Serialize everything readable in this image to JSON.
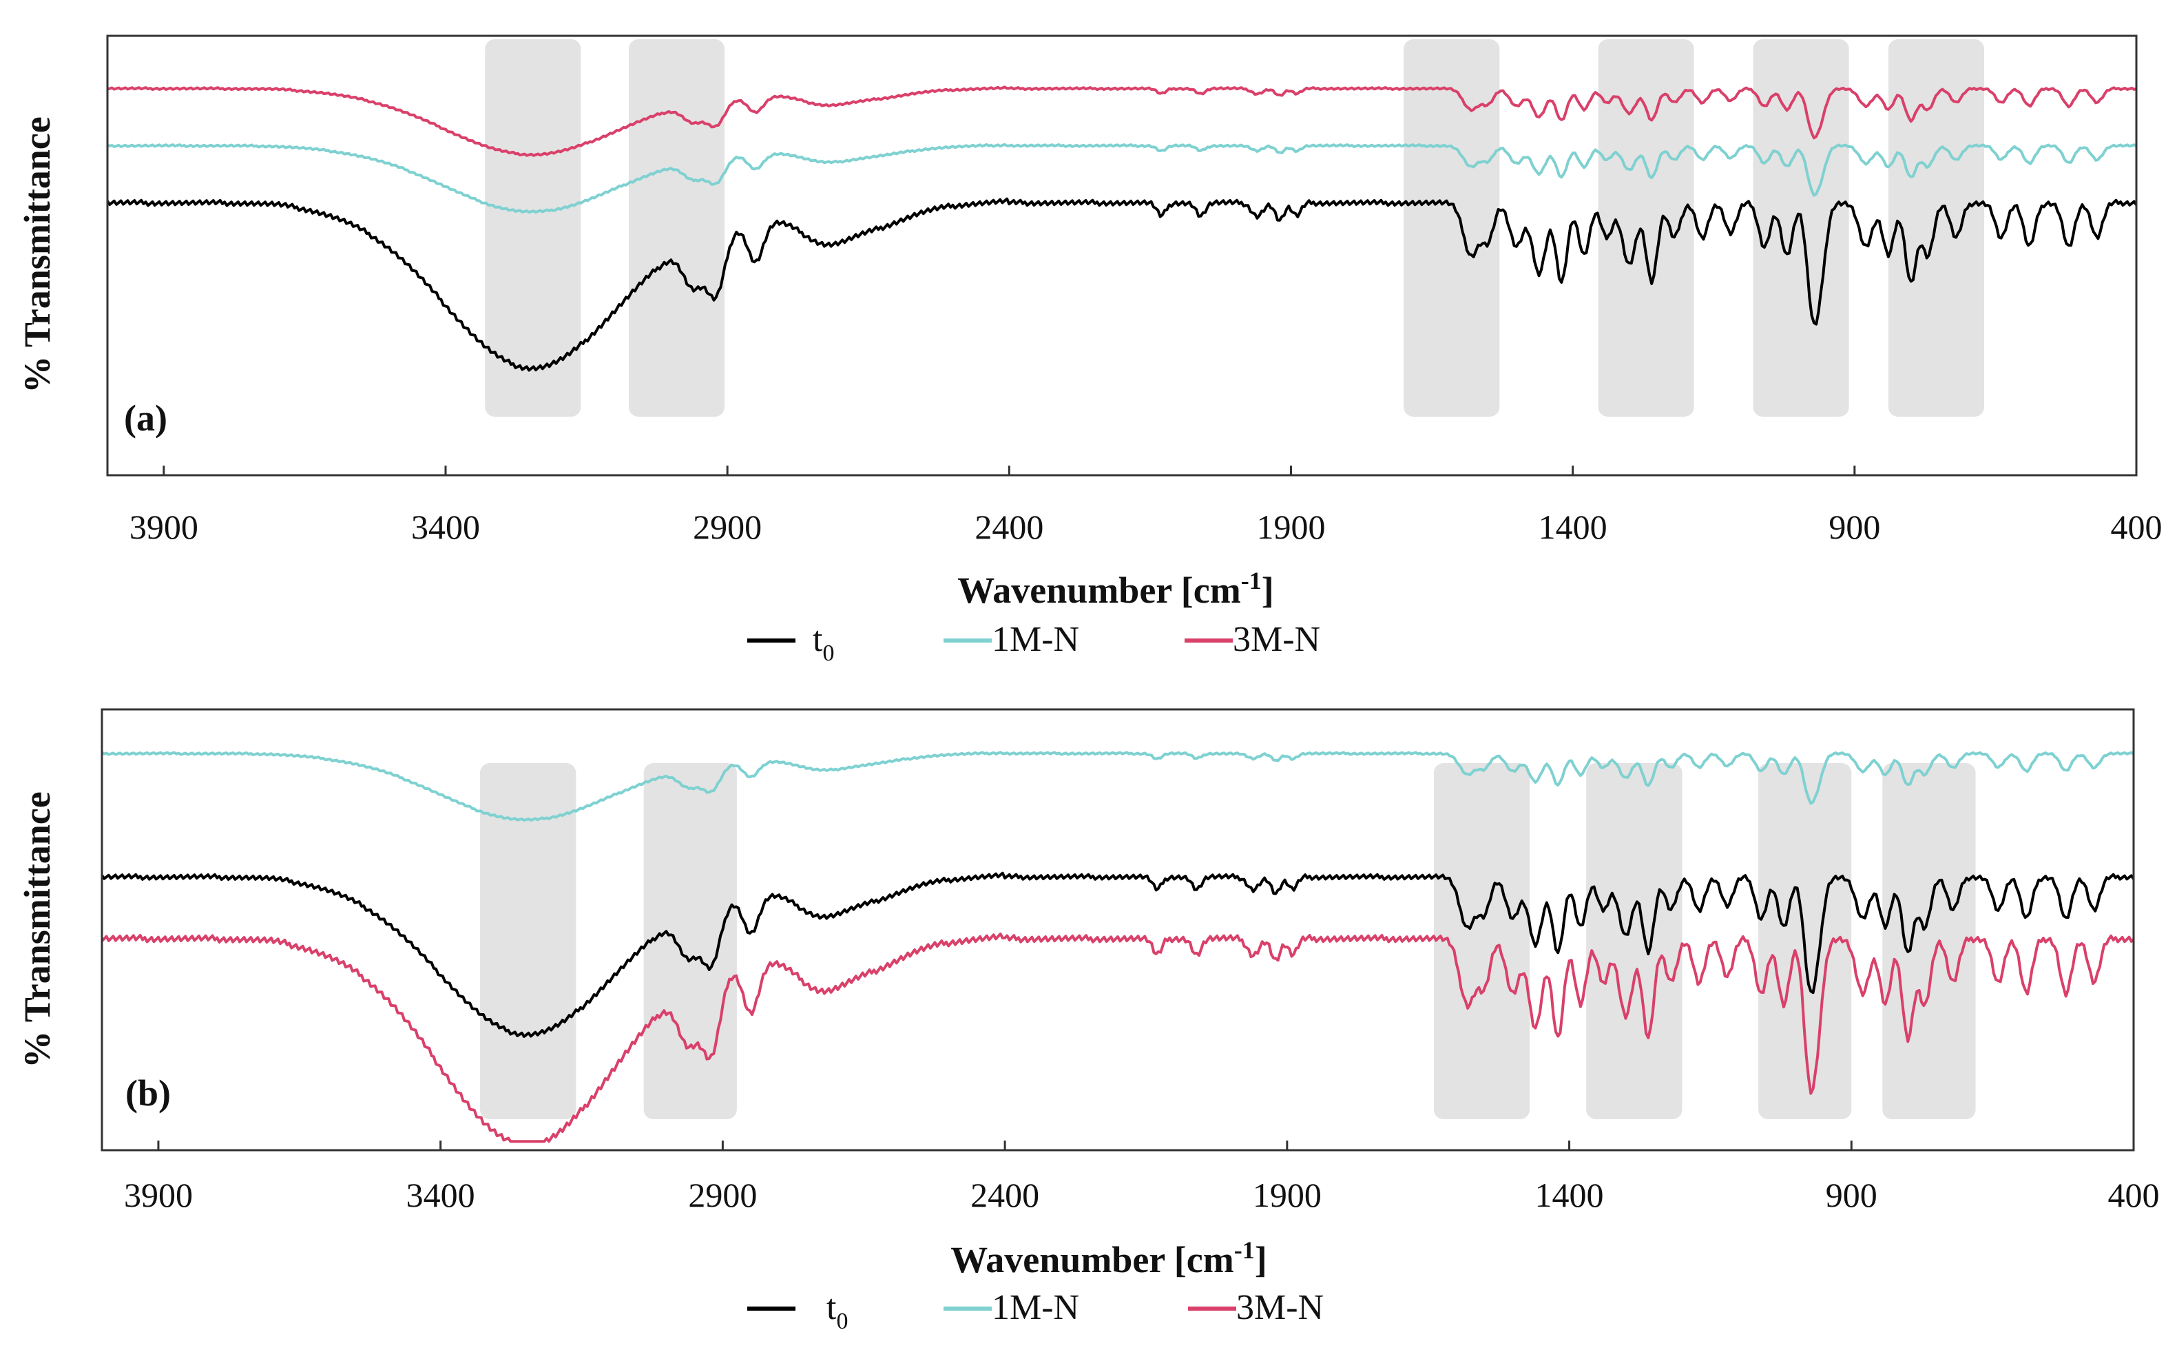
{
  "colors": {
    "t0": "#000000",
    "1M-N": "#7fd1d1",
    "3M-N": "#d9406a",
    "highlight": "#e3e3e3",
    "frame": "#333333"
  },
  "chart_data": [
    {
      "type": "line",
      "panel_label": "(a)",
      "xlabel": "Wavenumber [cm",
      "xlabel_sup": "-1",
      "xlabel_end": "]",
      "ylabel": "% Transmittance",
      "xlim": [
        4000,
        400
      ],
      "ylim": [
        0,
        100
      ],
      "xticks": [
        "3900",
        "3400",
        "2900",
        "2400",
        "1900",
        "1400",
        "900",
        "400"
      ],
      "xtick_values": [
        3900,
        3400,
        2900,
        2400,
        1900,
        1400,
        900,
        400
      ],
      "highlight_bands_cm": [
        [
          3330,
          3160
        ],
        [
          3075,
          2905
        ],
        [
          1700,
          1530
        ],
        [
          1355,
          1185
        ],
        [
          1080,
          910
        ],
        [
          840,
          670
        ]
      ],
      "legend": {
        "labels": [
          "t",
          "1M-N",
          "3M-N"
        ],
        "t0_subscript": "0"
      },
      "series": [
        {
          "name": "3M-N",
          "offset": 88,
          "scale": 0.4,
          "seed": 3
        },
        {
          "name": "1M-N",
          "offset": 75,
          "scale": 0.4,
          "seed": 2
        },
        {
          "name": "t0",
          "offset": 62,
          "scale": 1.0,
          "seed": 1
        }
      ]
    },
    {
      "type": "line",
      "panel_label": "(b)",
      "xlabel": "Wavenumber [cm",
      "xlabel_sup": "-1",
      "xlabel_end": "]",
      "ylabel": "% Transmittance",
      "xlim": [
        4000,
        400
      ],
      "ylim": [
        0,
        100
      ],
      "xticks": [
        "3900",
        "3400",
        "2900",
        "2400",
        "1900",
        "1400",
        "900",
        "400"
      ],
      "xtick_values": [
        3900,
        3400,
        2900,
        2400,
        1900,
        1400,
        900,
        400
      ],
      "highlight_bands_cm": [
        [
          3330,
          3160
        ],
        [
          3040,
          2875
        ],
        [
          1640,
          1470
        ],
        [
          1370,
          1200
        ],
        [
          1065,
          900
        ],
        [
          845,
          680
        ]
      ],
      "legend": {
        "labels": [
          "t",
          "1M-N",
          "3M-N"
        ],
        "t0_subscript": "0"
      },
      "series": [
        {
          "name": "1M-N",
          "offset": 90,
          "scale": 0.4,
          "seed": 2
        },
        {
          "name": "t0",
          "offset": 62,
          "scale": 0.95,
          "seed": 1
        },
        {
          "name": "3M-N",
          "offset": 48,
          "scale": 1.25,
          "seed": 3
        }
      ]
    }
  ]
}
